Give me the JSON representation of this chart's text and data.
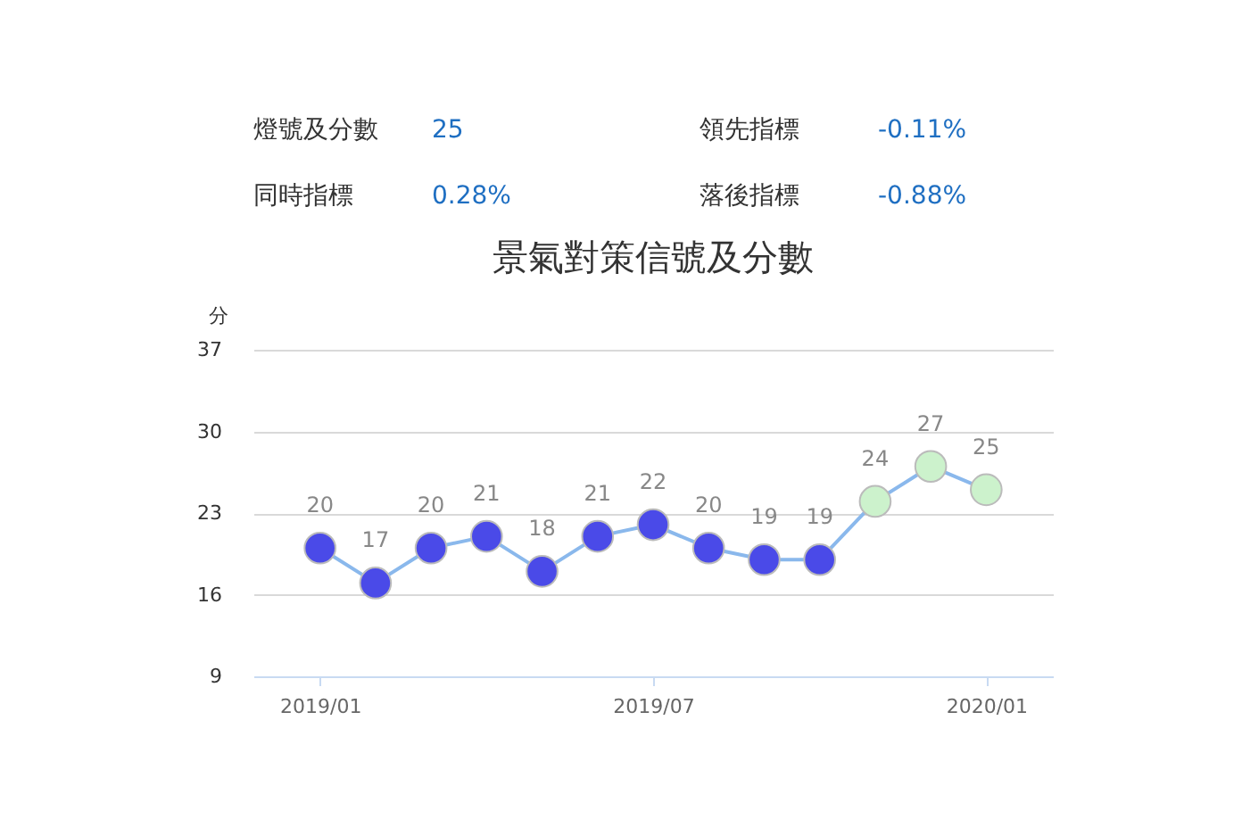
{
  "chart_data": {
    "type": "line",
    "title": "景氣對策信號及分數",
    "ylabel": "分",
    "categories": [
      "2019/01",
      null,
      null,
      null,
      null,
      null,
      "2019/07",
      null,
      null,
      null,
      null,
      null,
      "2020/01"
    ],
    "series": [
      {
        "color": "#8ab8ec",
        "values": [
          20,
          17,
          20,
          21,
          18,
          21,
          22,
          20,
          19,
          19,
          24,
          27,
          25
        ],
        "colors": [
          "#4a4ae8",
          "#4a4ae8",
          "#4a4ae8",
          "#4a4ae8",
          "#4a4ae8",
          "#4a4ae8",
          "#4a4ae8",
          "#4a4ae8",
          "#4a4ae8",
          "#4a4ae8",
          "#ccf2cc",
          "#ccf2cc",
          "#ccf2cc"
        ]
      }
    ],
    "ylim": [
      9,
      37
    ],
    "yticks": [
      9,
      16,
      23,
      30,
      37
    ],
    "grid": "y",
    "marker": "circle",
    "data_labels": true,
    "annotations": [
      "燈號及分數",
      "25",
      "領先指標",
      "-0.11%",
      "同時指標",
      "0.28%",
      "落後指標",
      "-0.88%"
    ]
  }
}
